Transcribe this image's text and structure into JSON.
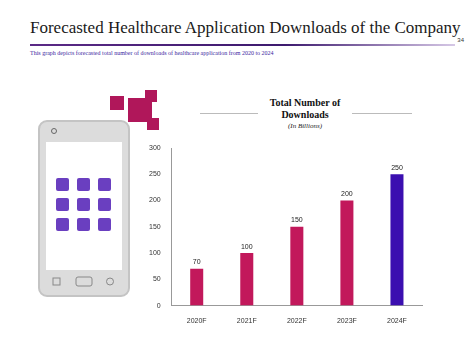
{
  "page": {
    "title": "Forecasted Healthcare Application Downloads of the Company",
    "page_number": "34",
    "description": "This graph depicts forecasted total number of downloads of healthcare application from 2020 to 2024"
  },
  "chart_data": {
    "type": "bar",
    "title": "Total Number of Downloads",
    "subtitle": "(In Billions)",
    "categories": [
      "2020F",
      "2021F",
      "2022F",
      "2023F",
      "2024F"
    ],
    "values": [
      70,
      100,
      150,
      200,
      250
    ],
    "colors": [
      "#c2185b",
      "#c2185b",
      "#c2185b",
      "#c2185b",
      "#3b0fb0"
    ],
    "ylim": [
      0,
      300
    ],
    "yticks": [
      0,
      50,
      100,
      150,
      200,
      250,
      300
    ],
    "grid": false,
    "data_labels": true
  }
}
